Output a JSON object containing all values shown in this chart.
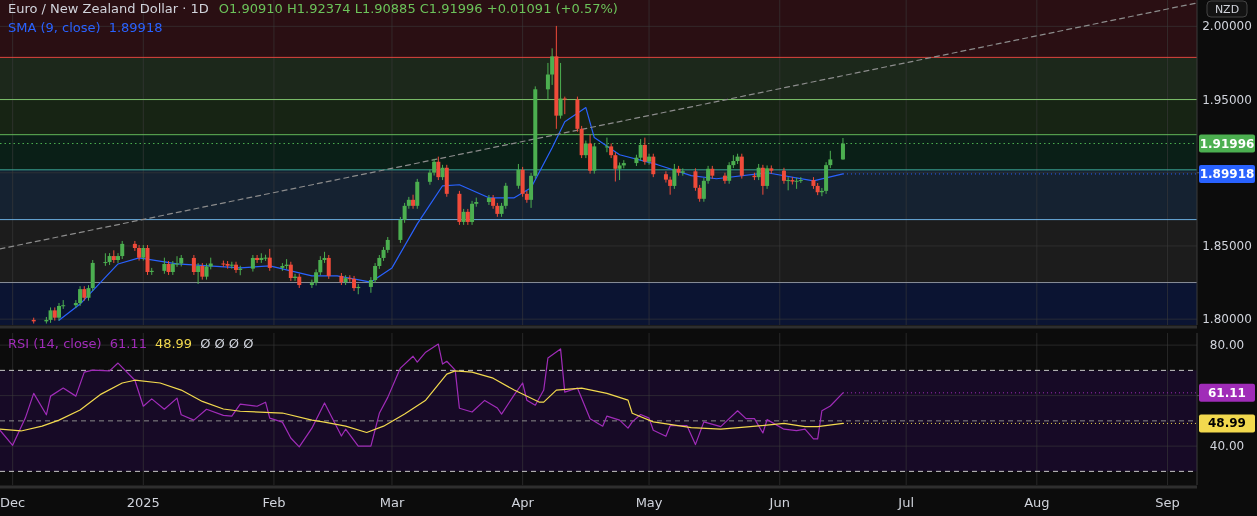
{
  "chart_data": [
    {
      "type": "candlestick",
      "title": "Euro / New Zealand Dollar · 1D",
      "subtitle": "O1.90910 H1.92374 L1.90885 C1.91996 +0.01091 (+0.57%)",
      "ylabel": "NZD",
      "x": [
        "2024-12-06",
        "2024-12-09",
        "2024-12-10",
        "2024-12-11",
        "2024-12-12",
        "2024-12-13",
        "2024-12-16",
        "2024-12-17",
        "2024-12-18",
        "2024-12-19",
        "2024-12-20",
        "2024-12-23",
        "2024-12-24",
        "2024-12-25",
        "2024-12-26",
        "2024-12-27",
        "2024-12-30",
        "2024-12-31",
        "2025-01-01",
        "2025-01-02",
        "2025-01-03",
        "2025-01-06",
        "2025-01-07",
        "2025-01-08",
        "2025-01-09",
        "2025-01-10",
        "2025-01-13",
        "2025-01-14",
        "2025-01-15",
        "2025-01-16",
        "2025-01-17",
        "2025-01-20",
        "2025-01-21",
        "2025-01-22",
        "2025-01-23",
        "2025-01-24",
        "2025-01-27",
        "2025-01-28",
        "2025-01-29",
        "2025-01-30",
        "2025-01-31",
        "2025-02-03",
        "2025-02-04",
        "2025-02-05",
        "2025-02-06",
        "2025-02-07",
        "2025-02-10",
        "2025-02-11",
        "2025-02-12",
        "2025-02-13",
        "2025-02-14",
        "2025-02-17",
        "2025-02-18",
        "2025-02-19",
        "2025-02-20",
        "2025-02-21",
        "2025-02-24",
        "2025-02-25",
        "2025-02-26",
        "2025-02-27",
        "2025-02-28",
        "2025-03-03",
        "2025-03-04",
        "2025-03-05",
        "2025-03-06",
        "2025-03-07",
        "2025-03-10",
        "2025-03-11",
        "2025-03-12",
        "2025-03-13",
        "2025-03-14",
        "2025-03-17",
        "2025-03-18",
        "2025-03-19",
        "2025-03-20",
        "2025-03-21",
        "2025-03-24",
        "2025-03-25",
        "2025-03-26",
        "2025-03-27",
        "2025-03-28",
        "2025-03-31",
        "2025-04-01",
        "2025-04-02",
        "2025-04-03",
        "2025-04-04",
        "2025-04-07",
        "2025-04-08",
        "2025-04-09",
        "2025-04-10",
        "2025-04-11",
        "2025-04-14",
        "2025-04-15",
        "2025-04-16",
        "2025-04-17",
        "2025-04-18",
        "2025-04-21",
        "2025-04-22",
        "2025-04-23",
        "2025-04-24",
        "2025-04-25",
        "2025-04-28",
        "2025-04-29",
        "2025-04-30",
        "2025-05-01",
        "2025-05-02",
        "2025-05-05",
        "2025-05-06",
        "2025-05-07",
        "2025-05-08",
        "2025-05-09",
        "2025-05-12",
        "2025-05-13",
        "2025-05-14",
        "2025-05-15",
        "2025-05-16",
        "2025-05-19",
        "2025-05-20",
        "2025-05-21",
        "2025-05-22",
        "2025-05-23",
        "2025-05-26",
        "2025-05-27",
        "2025-05-28",
        "2025-05-29",
        "2025-05-30",
        "2025-06-02",
        "2025-06-03",
        "2025-06-04",
        "2025-06-05",
        "2025-06-06",
        "2025-06-09",
        "2025-06-10",
        "2025-06-11",
        "2025-06-12",
        "2025-06-13",
        "2025-06-16"
      ],
      "ohlc": [
        [
          1.7995,
          1.801,
          1.797,
          1.7985
        ],
        [
          1.7985,
          1.8015,
          1.797,
          1.7995
        ],
        [
          1.7995,
          1.808,
          1.7975,
          1.806
        ],
        [
          1.806,
          1.808,
          1.799,
          1.801
        ],
        [
          1.801,
          1.811,
          1.799,
          1.809
        ],
        [
          1.809,
          1.813,
          1.807,
          1.8095
        ],
        [
          1.8095,
          1.813,
          1.8075,
          1.811
        ],
        [
          1.811,
          1.8225,
          1.809,
          1.8205
        ],
        [
          1.8205,
          1.8225,
          1.8126,
          1.8146
        ],
        [
          1.8146,
          1.8232,
          1.8126,
          1.8212
        ],
        [
          1.8212,
          1.8404,
          1.8192,
          1.8384
        ],
        [
          1.8384,
          1.845,
          1.8364,
          1.839
        ],
        [
          1.839,
          1.8451,
          1.837,
          1.8431
        ],
        [
          1.8431,
          1.847,
          1.8384,
          1.8404
        ],
        [
          1.8404,
          1.8451,
          1.8384,
          1.8431
        ],
        [
          1.8431,
          1.8534,
          1.8411,
          1.8514
        ],
        [
          1.8514,
          1.8534,
          1.8466,
          1.8486
        ],
        [
          1.8486,
          1.8506,
          1.84,
          1.842
        ],
        [
          1.842,
          1.8506,
          1.84,
          1.8486
        ],
        [
          1.8486,
          1.8506,
          1.8302,
          1.8322
        ],
        [
          1.8322,
          1.835,
          1.8302,
          1.833
        ],
        [
          1.833,
          1.842,
          1.831,
          1.8377
        ],
        [
          1.8377,
          1.8397,
          1.8302,
          1.8322
        ],
        [
          1.8322,
          1.8397,
          1.8302,
          1.8377
        ],
        [
          1.8377,
          1.843,
          1.8357,
          1.838
        ],
        [
          1.838,
          1.8438,
          1.836,
          1.8418
        ],
        [
          1.8418,
          1.8438,
          1.8302,
          1.8322
        ],
        [
          1.8322,
          1.8383,
          1.824,
          1.8363
        ],
        [
          1.8363,
          1.8383,
          1.827,
          1.829
        ],
        [
          1.829,
          1.838,
          1.827,
          1.836
        ],
        [
          1.836,
          1.842,
          1.834,
          1.838
        ],
        [
          1.838,
          1.84,
          1.8357,
          1.8377
        ],
        [
          1.8377,
          1.8397,
          1.8345,
          1.8365
        ],
        [
          1.8365,
          1.8392,
          1.8345,
          1.8372
        ],
        [
          1.8372,
          1.8392,
          1.8316,
          1.8336
        ],
        [
          1.8336,
          1.8365,
          1.83,
          1.8345
        ],
        [
          1.8345,
          1.8438,
          1.8325,
          1.8418
        ],
        [
          1.8418,
          1.8438,
          1.8384,
          1.8404
        ],
        [
          1.8404,
          1.845,
          1.8384,
          1.8418
        ],
        [
          1.8418,
          1.844,
          1.8398,
          1.842
        ],
        [
          1.842,
          1.848,
          1.833,
          1.835
        ],
        [
          1.835,
          1.8383,
          1.833,
          1.8363
        ],
        [
          1.8363,
          1.841,
          1.8343,
          1.8372
        ],
        [
          1.8372,
          1.8392,
          1.8261,
          1.8281
        ],
        [
          1.8281,
          1.831,
          1.8261,
          1.829
        ],
        [
          1.829,
          1.831,
          1.8213,
          1.8233
        ],
        [
          1.8233,
          1.827,
          1.8213,
          1.825
        ],
        [
          1.825,
          1.834,
          1.823,
          1.832
        ],
        [
          1.832,
          1.843,
          1.83,
          1.8404
        ],
        [
          1.8404,
          1.846,
          1.8384,
          1.8418
        ],
        [
          1.8418,
          1.8438,
          1.8275,
          1.8295
        ],
        [
          1.8295,
          1.8315,
          1.8233,
          1.8253
        ],
        [
          1.8253,
          1.83,
          1.8233,
          1.828
        ],
        [
          1.828,
          1.83,
          1.8255,
          1.8275
        ],
        [
          1.8275,
          1.8295,
          1.8192,
          1.8212
        ],
        [
          1.8212,
          1.824,
          1.817,
          1.822
        ],
        [
          1.822,
          1.8287,
          1.818,
          1.8267
        ],
        [
          1.8267,
          1.8383,
          1.8247,
          1.8363
        ],
        [
          1.8363,
          1.8438,
          1.8343,
          1.8418
        ],
        [
          1.8418,
          1.8493,
          1.8398,
          1.8473
        ],
        [
          1.8473,
          1.8561,
          1.8453,
          1.8541
        ],
        [
          1.8541,
          1.8698,
          1.8521,
          1.8678
        ],
        [
          1.8678,
          1.8794,
          1.8658,
          1.8774
        ],
        [
          1.8774,
          1.8835,
          1.8754,
          1.8815
        ],
        [
          1.8815,
          1.885,
          1.8754,
          1.8774
        ],
        [
          1.8774,
          1.8958,
          1.8754,
          1.8938
        ],
        [
          1.8938,
          1.9021,
          1.8918,
          1.9001
        ],
        [
          1.9001,
          1.9095,
          1.8981,
          1.9075
        ],
        [
          1.9075,
          1.911,
          1.895,
          1.897
        ],
        [
          1.897,
          1.9054,
          1.895,
          1.9034
        ],
        [
          1.9034,
          1.9054,
          1.8836,
          1.8856
        ],
        [
          1.8856,
          1.8876,
          1.8644,
          1.8664
        ],
        [
          1.8664,
          1.8753,
          1.8644,
          1.8733
        ],
        [
          1.8733,
          1.8753,
          1.8644,
          1.8664
        ],
        [
          1.8664,
          1.8808,
          1.8644,
          1.8788
        ],
        [
          1.8788,
          1.883,
          1.8768,
          1.88
        ],
        [
          1.88,
          1.8848,
          1.878,
          1.8828
        ],
        [
          1.8828,
          1.8848,
          1.8754,
          1.8774
        ],
        [
          1.8774,
          1.8794,
          1.8699,
          1.8719
        ],
        [
          1.8719,
          1.8794,
          1.8699,
          1.8774
        ],
        [
          1.8774,
          1.8931,
          1.8754,
          1.8911
        ],
        [
          1.8911,
          1.906,
          1.8891,
          1.902
        ],
        [
          1.902,
          1.904,
          1.8836,
          1.8856
        ],
        [
          1.8856,
          1.8876,
          1.8795,
          1.8815
        ],
        [
          1.8815,
          1.8999,
          1.876,
          1.8979
        ],
        [
          1.8979,
          1.959,
          1.8959,
          1.957
        ],
        [
          1.957,
          1.975,
          1.95,
          1.9671
        ],
        [
          1.9671,
          1.985,
          1.96,
          1.9795
        ],
        [
          1.9795,
          2.0003,
          1.93,
          1.939
        ],
        [
          1.939,
          1.975,
          1.937,
          1.9507
        ],
        [
          1.9507,
          1.952,
          1.94,
          1.95
        ],
        [
          1.95,
          1.952,
          1.928,
          1.93
        ],
        [
          1.93,
          1.932,
          1.91,
          1.912
        ],
        [
          1.912,
          1.922,
          1.91,
          1.92
        ],
        [
          1.92,
          1.926,
          1.8994,
          1.9014
        ],
        [
          1.9014,
          1.92,
          1.8994,
          1.918
        ],
        [
          1.918,
          1.924,
          1.914,
          1.918
        ],
        [
          1.918,
          1.92,
          1.91,
          1.912
        ],
        [
          1.912,
          1.914,
          1.894,
          1.9027
        ],
        [
          1.9027,
          1.907,
          1.895,
          1.905
        ],
        [
          1.905,
          1.9086,
          1.903,
          1.9066
        ],
        [
          1.9066,
          1.9123,
          1.9046,
          1.9103
        ],
        [
          1.9103,
          1.923,
          1.9083,
          1.919
        ],
        [
          1.919,
          1.924,
          1.9055,
          1.9075
        ],
        [
          1.9075,
          1.913,
          1.9055,
          1.911
        ],
        [
          1.911,
          1.913,
          1.897,
          1.899
        ],
        [
          1.899,
          1.901,
          1.8933,
          1.8953
        ],
        [
          1.8953,
          1.8973,
          1.885,
          1.891
        ],
        [
          1.891,
          1.906,
          1.889,
          1.9027
        ],
        [
          1.9027,
          1.9047,
          1.898,
          1.9
        ],
        [
          1.9,
          1.903,
          1.898,
          1.901
        ],
        [
          1.901,
          1.903,
          1.8877,
          1.8897
        ],
        [
          1.8897,
          1.8917,
          1.8802,
          1.8822
        ],
        [
          1.8822,
          1.8965,
          1.8802,
          1.8945
        ],
        [
          1.8945,
          1.9047,
          1.8925,
          1.9027
        ],
        [
          1.9027,
          1.9047,
          1.896,
          1.898
        ],
        [
          1.898,
          1.9,
          1.8925,
          1.8945
        ],
        [
          1.8945,
          1.9072,
          1.8925,
          1.9052
        ],
        [
          1.9052,
          1.912,
          1.9032,
          1.908
        ],
        [
          1.908,
          1.913,
          1.906,
          1.911
        ],
        [
          1.911,
          1.913,
          1.896,
          1.898
        ],
        [
          1.898,
          1.9,
          1.895,
          1.897
        ],
        [
          1.897,
          1.906,
          1.895,
          1.9034
        ],
        [
          1.9034,
          1.9054,
          1.885,
          1.891
        ],
        [
          1.891,
          1.905,
          1.889,
          1.903
        ],
        [
          1.903,
          1.905,
          1.8994,
          1.9014
        ],
        [
          1.9014,
          1.9034,
          1.8925,
          1.8945
        ],
        [
          1.8945,
          1.897,
          1.888,
          1.895
        ],
        [
          1.895,
          1.897,
          1.892,
          1.894
        ],
        [
          1.894,
          1.8965,
          1.889,
          1.8945
        ],
        [
          1.8945,
          1.897,
          1.893,
          1.895
        ],
        [
          1.895,
          1.897,
          1.889,
          1.891
        ],
        [
          1.891,
          1.893,
          1.8847,
          1.8867
        ],
        [
          1.8867,
          1.8896,
          1.884,
          1.8876
        ],
        [
          1.8876,
          1.9072,
          1.8856,
          1.9052
        ],
        [
          1.9052,
          1.915,
          1.9032,
          1.9091
        ],
        [
          1.9091,
          1.92374,
          1.90885,
          1.91996
        ]
      ],
      "series": [
        {
          "name": "SMA (9, close)",
          "type": "line",
          "color": "#2962ff",
          "x": [
            "2024-12-12",
            "2024-12-17",
            "2024-12-26",
            "2024-12-31",
            "2025-01-09",
            "2025-01-24",
            "2025-01-31",
            "2025-02-10",
            "2025-02-16",
            "2025-02-24",
            "2025-03-01",
            "2025-03-07",
            "2025-03-13",
            "2025-03-17",
            "2025-03-24",
            "2025-03-30",
            "2025-04-03",
            "2025-04-08",
            "2025-04-11",
            "2025-04-16",
            "2025-04-18",
            "2025-04-24",
            "2025-05-03",
            "2025-05-11",
            "2025-05-17",
            "2025-05-29",
            "2025-06-09",
            "2025-06-16"
          ],
          "values": [
            1.7993,
            1.8103,
            1.8377,
            1.8418,
            1.8377,
            1.835,
            1.8364,
            1.8295,
            1.8295,
            1.8253,
            1.835,
            1.8651,
            1.8911,
            1.8918,
            1.8829,
            1.8829,
            1.8897,
            1.9171,
            1.9349,
            1.9445,
            1.924,
            1.9123,
            1.9055,
            1.898,
            1.8959,
            1.9,
            1.8945,
            1.89918
          ]
        },
        {
          "type": "line",
          "color": "#8c8c8c",
          "line_style": "dashed",
          "x": [
            "2024-11-28",
            "2025-09-08"
          ],
          "values": [
            1.848,
            2.016
          ]
        }
      ],
      "xlim": [
        "2024-11-28",
        "2025-09-08"
      ],
      "xticks": [
        {
          "value": "2024-12-01",
          "label": null
        },
        {
          "value": "2025-01-01",
          "label": null
        },
        {
          "value": "2025-02-01",
          "label": null
        },
        {
          "value": "2025-03-01",
          "label": null
        },
        {
          "value": "2025-04-01",
          "label": null
        },
        {
          "value": "2025-05-01",
          "label": null
        },
        {
          "value": "2025-06-01",
          "label": null
        },
        {
          "value": "2025-07-01",
          "label": null
        },
        {
          "value": "2025-08-01",
          "label": null
        },
        {
          "value": "2025-09-01",
          "label": null
        }
      ],
      "ylim": [
        1.796,
        2.018
      ],
      "yticks": [
        {
          "value": 1.8,
          "label": "1.80000"
        },
        {
          "value": 1.85,
          "label": "1.85000"
        },
        {
          "value": 1.9,
          "label": null
        },
        {
          "value": 1.95,
          "label": "1.95000"
        },
        {
          "value": 2.0,
          "label": "2.00000"
        }
      ],
      "bands": [
        {
          "axis": "y",
          "from": 1.9788,
          "to": 2.018,
          "color": "#2a0f13"
        },
        {
          "axis": "y",
          "from": 1.95,
          "to": 1.9788,
          "color": "#1c281b"
        },
        {
          "axis": "y",
          "from": 1.926,
          "to": 1.95,
          "color": "#172414"
        },
        {
          "axis": "y",
          "from": 1.902,
          "to": 1.926,
          "color": "#0a1f17"
        },
        {
          "axis": "y",
          "from": 1.868,
          "to": 1.902,
          "color": "#152231"
        },
        {
          "axis": "y",
          "from": 1.825,
          "to": 1.868,
          "color": "#1c1c1c"
        },
        {
          "axis": "y",
          "from": 1.796,
          "to": 1.825,
          "color": "#0b1432"
        }
      ],
      "ref_lines": [
        {
          "axis": "y",
          "value": 1.9788,
          "color": "#e0453f"
        },
        {
          "axis": "y",
          "value": 1.95,
          "color": "#7cc06a"
        },
        {
          "axis": "y",
          "value": 1.926,
          "color": "#62b85a"
        },
        {
          "axis": "y",
          "value": 1.902,
          "color": "#3aa595"
        },
        {
          "axis": "y",
          "value": 1.868,
          "color": "#6aaee0"
        },
        {
          "axis": "y",
          "value": 1.825,
          "color": "#8a8f99"
        },
        {
          "axis": "y",
          "value": 1.91996,
          "label": "1.91996",
          "color": "#4caf50",
          "line_style": "dotted"
        }
      ],
      "annotations": [
        "1.89918",
        {
          "text": "1.89918",
          "x": "2025-06-16",
          "y": 1.89918
        }
      ],
      "grid": true,
      "legend": "top left",
      "tick_labels": "y"
    },
    {
      "type": "line",
      "series": [
        {
          "name": "RSI (14, close)",
          "color": "#a02cb8",
          "x": [
            "2024-11-28",
            "2024-12-01",
            "2024-12-04",
            "2024-12-06",
            "2024-12-09",
            "2024-12-10",
            "2024-12-13",
            "2024-12-16",
            "2024-12-18",
            "2024-12-20",
            "2024-12-24",
            "2024-12-26",
            "2024-12-30",
            "2025-01-01",
            "2025-01-03",
            "2025-01-06",
            "2025-01-09",
            "2025-01-10",
            "2025-01-13",
            "2025-01-16",
            "2025-01-20",
            "2025-01-22",
            "2025-01-24",
            "2025-01-28",
            "2025-01-30",
            "2025-01-31",
            "2025-02-03",
            "2025-02-05",
            "2025-02-07",
            "2025-02-10",
            "2025-02-13",
            "2025-02-17",
            "2025-02-18",
            "2025-02-21",
            "2025-02-24",
            "2025-02-26",
            "2025-02-28",
            "2025-03-03",
            "2025-03-06",
            "2025-03-07",
            "2025-03-09",
            "2025-03-12",
            "2025-03-13",
            "2025-03-14",
            "2025-03-16",
            "2025-03-17",
            "2025-03-20",
            "2025-03-23",
            "2025-03-26",
            "2025-03-27",
            "2025-03-30",
            "2025-04-01",
            "2025-04-02",
            "2025-04-04",
            "2025-04-06",
            "2025-04-07",
            "2025-04-10",
            "2025-04-11",
            "2025-04-14",
            "2025-04-17",
            "2025-04-20",
            "2025-04-21",
            "2025-04-24",
            "2025-04-26",
            "2025-04-27",
            "2025-04-29",
            "2025-05-01",
            "2025-05-02",
            "2025-05-05",
            "2025-05-06",
            "2025-05-10",
            "2025-05-12",
            "2025-05-14",
            "2025-05-18",
            "2025-05-20",
            "2025-05-22",
            "2025-05-24",
            "2025-05-26",
            "2025-05-28",
            "2025-05-29",
            "2025-06-02",
            "2025-06-05",
            "2025-06-07",
            "2025-06-09",
            "2025-06-10",
            "2025-06-11",
            "2025-06-13",
            "2025-06-16"
          ],
          "values": [
            46.3,
            40.3,
            51.1,
            60.9,
            52.4,
            59.8,
            63.0,
            59.8,
            69.3,
            70.1,
            69.8,
            72.9,
            66.1,
            55.8,
            58.7,
            54.6,
            59.0,
            52.4,
            50.3,
            54.6,
            52.2,
            51.9,
            56.6,
            55.8,
            57.4,
            51.1,
            49.5,
            43.2,
            39.7,
            47.1,
            57.1,
            44.0,
            46.7,
            40.0,
            40.0,
            53.0,
            59.3,
            70.9,
            75.6,
            73.3,
            77.2,
            80.4,
            72.5,
            73.6,
            70.1,
            55.0,
            53.5,
            58.1,
            55.1,
            52.7,
            60.3,
            65.0,
            58.2,
            56.2,
            62.2,
            74.9,
            78.5,
            61.4,
            63.0,
            50.8,
            47.9,
            51.9,
            50.3,
            47.1,
            49.6,
            52.5,
            51.1,
            46.3,
            43.9,
            48.1,
            48.1,
            40.6,
            49.6,
            47.7,
            50.9,
            54.0,
            50.9,
            50.9,
            45.2,
            50.5,
            46.7,
            46.1,
            46.7,
            42.9,
            42.9,
            54.0,
            55.9,
            61.11
          ]
        },
        {
          "color": "#f2d94e",
          "x": [
            "2024-11-28",
            "2024-12-03",
            "2024-12-08",
            "2024-12-12",
            "2024-12-17",
            "2024-12-22",
            "2024-12-27",
            "2024-12-30",
            "2025-01-05",
            "2025-01-10",
            "2025-01-15",
            "2025-01-20",
            "2025-01-24",
            "2025-02-03",
            "2025-02-10",
            "2025-02-13",
            "2025-02-18",
            "2025-02-23",
            "2025-02-27",
            "2025-03-04",
            "2025-03-09",
            "2025-03-14",
            "2025-03-16",
            "2025-03-20",
            "2025-03-25",
            "2025-03-30",
            "2025-04-05",
            "2025-04-06",
            "2025-04-09",
            "2025-04-15",
            "2025-04-21",
            "2025-04-26",
            "2025-04-27",
            "2025-05-02",
            "2025-05-11",
            "2025-05-18",
            "2025-05-25",
            "2025-06-02",
            "2025-06-07",
            "2025-06-10",
            "2025-06-16"
          ],
          "values": [
            46.7,
            46.0,
            47.9,
            50.3,
            54.3,
            60.6,
            65.0,
            66.1,
            65.0,
            62.2,
            57.7,
            54.7,
            53.8,
            53.1,
            50.3,
            49.5,
            47.9,
            45.4,
            47.9,
            52.7,
            58.2,
            68.5,
            69.8,
            69.3,
            66.9,
            62.2,
            57.4,
            57.4,
            62.2,
            63.0,
            60.9,
            58.2,
            53.0,
            49.6,
            47.3,
            46.7,
            47.7,
            49.0,
            47.7,
            47.7,
            48.99
          ]
        }
      ],
      "xlim": [
        "2024-11-28",
        "2025-09-08"
      ],
      "xticks": [
        {
          "value": "2024-12-01",
          "label": "Dec"
        },
        {
          "value": "2025-01-01",
          "label": "2025"
        },
        {
          "value": "2025-02-01",
          "label": "Feb"
        },
        {
          "value": "2025-03-01",
          "label": "Mar"
        },
        {
          "value": "2025-04-01",
          "label": "Apr"
        },
        {
          "value": "2025-05-01",
          "label": "May"
        },
        {
          "value": "2025-06-01",
          "label": "Jun"
        },
        {
          "value": "2025-07-01",
          "label": "Jul"
        },
        {
          "value": "2025-08-01",
          "label": "Aug"
        },
        {
          "value": "2025-09-01",
          "label": "Sep"
        }
      ],
      "ylim": [
        24.6,
        84.8
      ],
      "yticks": [
        {
          "value": 40,
          "label": "40.00"
        },
        {
          "value": 60,
          "label": null
        },
        {
          "value": 80,
          "label": "80.00"
        }
      ],
      "bands": [
        {
          "axis": "y",
          "from": 30,
          "to": 70,
          "color": "#170a26"
        }
      ],
      "ref_lines": [
        {
          "axis": "y",
          "value": 70,
          "color": "#c8c8c8",
          "line_style": "dashed"
        },
        {
          "axis": "y",
          "value": 50,
          "color": "#8a8a8a",
          "line_style": "dashed"
        },
        {
          "axis": "y",
          "value": 30,
          "color": "#c8c8c8",
          "line_style": "dashed"
        }
      ],
      "annotations": [
        "61.11",
        "48.99",
        "Ø Ø Ø Ø",
        {
          "text": "61.11",
          "x": "2025-06-16",
          "y": 61.11
        },
        {
          "text": "48.99",
          "x": "2025-06-16",
          "y": 48.99
        }
      ],
      "grid": true,
      "legend": "top left"
    }
  ]
}
